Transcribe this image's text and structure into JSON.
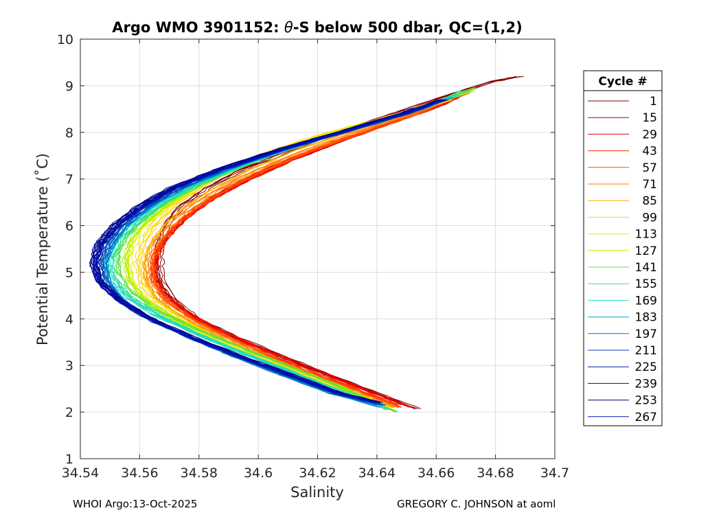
{
  "chart_data": {
    "type": "line",
    "title_prefix": "Argo WMO 3901152: ",
    "title_theta": "θ",
    "title_suffix": "-S below 500 dbar,  QC=(1,2)",
    "xlabel": "Salinity",
    "ylabel": "Potential Temperature (˚C)",
    "xlim": [
      34.54,
      34.7
    ],
    "ylim": [
      1,
      10
    ],
    "xticks": [
      34.54,
      34.56,
      34.58,
      34.6,
      34.62,
      34.64,
      34.66,
      34.68,
      34.7
    ],
    "xtick_labels": [
      "34.54",
      "34.56",
      "34.58",
      "34.6",
      "34.62",
      "34.64",
      "34.66",
      "34.68",
      "34.7"
    ],
    "yticks": [
      1,
      2,
      3,
      4,
      5,
      6,
      7,
      8,
      9,
      10
    ],
    "ytick_labels": [
      "1",
      "2",
      "3",
      "4",
      "5",
      "6",
      "7",
      "8",
      "9",
      "10"
    ],
    "grid": true,
    "legend_title": "Cycle #",
    "legend_position": "outside-right",
    "series": [
      {
        "name": "1",
        "color": "#800000",
        "theta": [
          9.2,
          9.1,
          8.8,
          8.4,
          8.0,
          7.6,
          7.2,
          6.8,
          6.4,
          6.0,
          5.6,
          5.2,
          4.8,
          4.4,
          4.0,
          3.6,
          3.2,
          2.8,
          2.4,
          2.07
        ],
        "salinity": [
          34.6885,
          34.68,
          34.665,
          34.646,
          34.627,
          34.61,
          34.595,
          34.583,
          34.574,
          34.569,
          34.567,
          34.567,
          34.568,
          34.572,
          34.58,
          34.593,
          34.608,
          34.624,
          34.64,
          34.654
        ]
      },
      {
        "name": "15",
        "color": "#b00000",
        "theta": [
          8.9,
          8.6,
          8.2,
          7.8,
          7.4,
          7.0,
          6.6,
          6.2,
          5.8,
          5.4,
          5.0,
          4.6,
          4.2,
          3.8,
          3.4,
          3.0,
          2.6,
          2.2
        ],
        "salinity": [
          34.671,
          34.662,
          34.644,
          34.626,
          34.61,
          34.596,
          34.585,
          34.576,
          34.57,
          34.566,
          34.565,
          34.568,
          34.575,
          34.586,
          34.6,
          34.616,
          34.632,
          34.648
        ]
      },
      {
        "name": "29",
        "color": "#e00000",
        "theta": [
          8.85,
          8.6,
          8.2,
          7.8,
          7.4,
          7.0,
          6.6,
          6.2,
          5.8,
          5.4,
          5.0,
          4.6,
          4.2,
          3.8,
          3.4,
          3.0,
          2.6,
          2.1
        ],
        "salinity": [
          34.67,
          34.662,
          34.644,
          34.627,
          34.611,
          34.597,
          34.585,
          34.576,
          34.569,
          34.5655,
          34.5645,
          34.567,
          34.574,
          34.585,
          34.599,
          34.615,
          34.631,
          34.651
        ]
      },
      {
        "name": "43",
        "color": "#ff2000",
        "theta": [
          8.8,
          8.5,
          8.1,
          7.7,
          7.3,
          6.9,
          6.5,
          6.1,
          5.7,
          5.3,
          4.9,
          4.5,
          4.1,
          3.7,
          3.3,
          2.9,
          2.5,
          2.15
        ],
        "salinity": [
          34.668,
          34.658,
          34.64,
          34.622,
          34.606,
          34.593,
          34.582,
          34.574,
          34.568,
          34.565,
          34.5645,
          34.568,
          34.576,
          34.588,
          34.602,
          34.617,
          34.633,
          34.647
        ]
      },
      {
        "name": "57",
        "color": "#ff4a00",
        "theta": [
          8.75,
          8.4,
          8.0,
          7.6,
          7.2,
          6.8,
          6.4,
          6.0,
          5.6,
          5.2,
          4.8,
          4.4,
          4.0,
          3.6,
          3.2,
          2.8,
          2.4,
          2.1
        ],
        "salinity": [
          34.666,
          34.654,
          34.636,
          34.618,
          34.603,
          34.59,
          34.58,
          34.572,
          34.567,
          34.5645,
          34.565,
          34.569,
          34.578,
          34.59,
          34.604,
          34.619,
          34.636,
          34.648
        ]
      },
      {
        "name": "71",
        "color": "#ff7a00",
        "theta": [
          8.7,
          8.4,
          8.0,
          7.6,
          7.2,
          6.8,
          6.4,
          6.0,
          5.6,
          5.2,
          4.8,
          4.4,
          4.0,
          3.6,
          3.2,
          2.8,
          2.4,
          2.1
        ],
        "salinity": [
          34.664,
          34.652,
          34.633,
          34.615,
          34.6,
          34.587,
          34.577,
          34.57,
          34.565,
          34.563,
          34.5635,
          34.567,
          34.576,
          34.588,
          34.602,
          34.618,
          34.634,
          34.646
        ]
      },
      {
        "name": "85",
        "color": "#ffaa00",
        "theta": [
          8.7,
          8.4,
          8.0,
          7.6,
          7.2,
          6.8,
          6.4,
          6.0,
          5.6,
          5.2,
          4.8,
          4.4,
          4.0,
          3.6,
          3.2,
          2.8,
          2.4,
          2.1
        ],
        "salinity": [
          34.664,
          34.65,
          34.63,
          34.612,
          34.597,
          34.585,
          34.575,
          34.568,
          34.5635,
          34.5615,
          34.562,
          34.566,
          34.575,
          34.587,
          34.601,
          34.617,
          34.633,
          34.645
        ]
      },
      {
        "name": "99",
        "color": "#ffd400",
        "theta": [
          8.7,
          8.4,
          8.0,
          7.6,
          7.2,
          6.8,
          6.4,
          6.0,
          5.6,
          5.2,
          4.8,
          4.4,
          4.0,
          3.6,
          3.2,
          2.8,
          2.4,
          2.1
        ],
        "salinity": [
          34.665,
          34.648,
          34.624,
          34.605,
          34.591,
          34.58,
          34.571,
          34.565,
          34.561,
          34.5595,
          34.5605,
          34.565,
          34.574,
          34.586,
          34.6,
          34.616,
          34.632,
          34.644
        ]
      },
      {
        "name": "113",
        "color": "#e8f000",
        "theta": [
          8.8,
          8.4,
          8.0,
          7.6,
          7.2,
          6.8,
          6.4,
          6.0,
          5.6,
          5.2,
          4.8,
          4.4,
          4.0,
          3.6,
          3.2,
          2.8,
          2.4,
          2.05
        ],
        "salinity": [
          34.668,
          34.648,
          34.625,
          34.606,
          34.591,
          34.579,
          34.569,
          34.562,
          34.558,
          34.5565,
          34.5575,
          34.562,
          34.571,
          34.584,
          34.599,
          34.615,
          34.631,
          34.645
        ]
      },
      {
        "name": "127",
        "color": "#b0f000",
        "theta": [
          8.9,
          8.5,
          8.1,
          7.7,
          7.3,
          6.9,
          6.5,
          6.1,
          5.7,
          5.3,
          4.9,
          4.5,
          4.1,
          3.7,
          3.3,
          2.9,
          2.5,
          2.0
        ],
        "salinity": [
          34.672,
          34.654,
          34.632,
          34.612,
          34.595,
          34.581,
          34.57,
          34.562,
          34.5565,
          34.5545,
          34.5555,
          34.56,
          34.569,
          34.582,
          34.597,
          34.613,
          34.629,
          34.646
        ]
      },
      {
        "name": "141",
        "color": "#60e040",
        "theta": [
          8.95,
          8.6,
          8.2,
          7.8,
          7.4,
          7.0,
          6.6,
          6.2,
          5.8,
          5.4,
          5.0,
          4.6,
          4.2,
          3.8,
          3.4,
          3.0,
          2.6,
          2.0
        ],
        "salinity": [
          34.673,
          34.658,
          34.638,
          34.617,
          34.599,
          34.584,
          34.572,
          34.563,
          34.5565,
          34.5535,
          34.5535,
          34.5575,
          34.566,
          34.579,
          34.594,
          34.61,
          34.626,
          34.647
        ]
      },
      {
        "name": "155",
        "color": "#30e090",
        "theta": [
          8.9,
          8.5,
          8.1,
          7.7,
          7.3,
          6.9,
          6.5,
          6.1,
          5.7,
          5.3,
          4.9,
          4.5,
          4.1,
          3.7,
          3.3,
          2.9,
          2.5,
          2.05
        ],
        "salinity": [
          34.67,
          34.655,
          34.634,
          34.613,
          34.596,
          34.581,
          34.569,
          34.56,
          34.554,
          34.551,
          34.5515,
          34.5565,
          34.566,
          34.579,
          34.594,
          34.61,
          34.626,
          34.644
        ]
      },
      {
        "name": "169",
        "color": "#20d8c8",
        "theta": [
          8.8,
          8.5,
          8.1,
          7.7,
          7.3,
          6.9,
          6.5,
          6.1,
          5.7,
          5.3,
          4.9,
          4.5,
          4.1,
          3.7,
          3.3,
          2.9,
          2.5,
          2.1
        ],
        "salinity": [
          34.667,
          34.654,
          34.633,
          34.612,
          34.594,
          34.579,
          34.567,
          34.558,
          34.552,
          34.549,
          34.55,
          34.555,
          34.5645,
          34.578,
          34.593,
          34.609,
          34.625,
          34.642
        ]
      },
      {
        "name": "183",
        "color": "#00a8d8",
        "theta": [
          8.75,
          8.4,
          8.0,
          7.6,
          7.2,
          6.8,
          6.4,
          6.0,
          5.6,
          5.2,
          4.8,
          4.4,
          4.0,
          3.6,
          3.2,
          2.8,
          2.4,
          2.1
        ],
        "salinity": [
          34.665,
          34.65,
          34.629,
          34.608,
          34.59,
          34.575,
          34.564,
          34.556,
          34.551,
          34.5485,
          34.5495,
          34.5545,
          34.564,
          34.577,
          34.592,
          34.608,
          34.625,
          34.641
        ]
      },
      {
        "name": "197",
        "color": "#0070c0",
        "theta": [
          8.7,
          8.4,
          8.0,
          7.6,
          7.2,
          6.8,
          6.4,
          6.0,
          5.6,
          5.2,
          4.8,
          4.4,
          4.0,
          3.6,
          3.2,
          2.8,
          2.4,
          2.15
        ],
        "salinity": [
          34.663,
          34.649,
          34.628,
          34.607,
          34.589,
          34.574,
          34.563,
          34.555,
          34.5505,
          34.548,
          34.549,
          34.554,
          34.5635,
          34.577,
          34.592,
          34.608,
          34.625,
          34.641
        ]
      },
      {
        "name": "211",
        "color": "#0040b0",
        "theta": [
          8.7,
          8.4,
          8.0,
          7.6,
          7.2,
          6.8,
          6.4,
          6.0,
          5.6,
          5.2,
          4.8,
          4.4,
          4.0,
          3.6,
          3.2,
          2.8,
          2.4,
          2.15
        ],
        "salinity": [
          34.663,
          34.65,
          34.629,
          34.607,
          34.588,
          34.573,
          34.562,
          34.554,
          34.549,
          34.5465,
          34.548,
          34.5535,
          34.5635,
          34.577,
          34.592,
          34.609,
          34.626,
          34.642
        ]
      },
      {
        "name": "225",
        "color": "#0020a0",
        "theta": [
          8.7,
          8.4,
          8.0,
          7.6,
          7.2,
          6.8,
          6.4,
          6.0,
          5.6,
          5.2,
          4.8,
          4.4,
          4.0,
          3.6,
          3.2,
          2.8,
          2.4,
          2.2
        ],
        "salinity": [
          34.662,
          34.649,
          34.628,
          34.606,
          34.587,
          34.571,
          34.56,
          34.552,
          34.547,
          34.545,
          34.5465,
          34.553,
          34.563,
          34.577,
          34.593,
          34.61,
          34.627,
          34.64
        ]
      },
      {
        "name": "239",
        "color": "#000890",
        "theta": [
          8.7,
          8.4,
          8.0,
          7.6,
          7.2,
          6.8,
          6.4,
          6.0,
          5.6,
          5.2,
          4.8,
          4.4,
          4.0,
          3.6,
          3.2,
          2.8,
          2.4,
          2.2
        ],
        "salinity": [
          34.662,
          34.648,
          34.627,
          34.605,
          34.586,
          34.57,
          34.559,
          34.551,
          34.546,
          34.544,
          34.546,
          34.553,
          34.5635,
          34.578,
          34.594,
          34.611,
          34.628,
          34.641
        ]
      },
      {
        "name": "253",
        "color": "#000070",
        "theta": [
          8.7,
          8.4,
          8.0,
          7.6,
          7.2,
          6.8,
          6.4,
          6.0,
          5.6,
          5.2,
          4.8,
          4.4,
          4.0,
          3.6,
          3.2,
          2.8,
          2.4,
          2.2
        ],
        "salinity": [
          34.662,
          34.648,
          34.627,
          34.606,
          34.587,
          34.571,
          34.56,
          34.552,
          34.5465,
          34.5445,
          34.5465,
          34.5535,
          34.564,
          34.578,
          34.594,
          34.611,
          34.628,
          34.641
        ]
      },
      {
        "name": "267",
        "color": "#0010c0",
        "theta": [
          8.7,
          8.4,
          8.0,
          7.6,
          7.2,
          6.8,
          6.4,
          6.0,
          5.6,
          5.2,
          4.8,
          4.4,
          4.0,
          3.6,
          3.2,
          2.8,
          2.4,
          2.2
        ],
        "salinity": [
          34.662,
          34.649,
          34.628,
          34.607,
          34.588,
          34.572,
          34.561,
          34.553,
          34.5475,
          34.5455,
          34.547,
          34.5535,
          34.5635,
          34.5775,
          34.5935,
          34.6105,
          34.6275,
          34.6405
        ]
      }
    ]
  },
  "footer": {
    "left": "WHOI Argo:13-Oct-2025",
    "right": "GREGORY C. JOHNSON at aoml"
  }
}
